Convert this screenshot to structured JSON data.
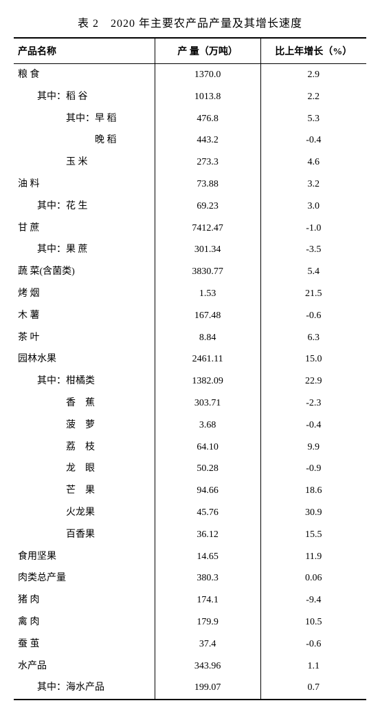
{
  "title": "表 2　2020 年主要农产品产量及其增长速度",
  "headers": {
    "name": "产品名称",
    "output": "产 量（万吨）",
    "growth": "比上年增长（%）"
  },
  "style": {
    "background_color": "#ffffff",
    "text_color": "#000000",
    "border_color": "#000000",
    "title_fontsize": 16,
    "body_fontsize": 14,
    "col_widths": [
      "40%",
      "30%",
      "30%"
    ]
  },
  "rows": [
    {
      "name": "粮 食",
      "indent": 0,
      "output": "1370.0",
      "growth": "2.9"
    },
    {
      "name": "其中：稻 谷",
      "indent": 2,
      "output": "1013.8",
      "growth": "2.2"
    },
    {
      "name": "其中：早 稻",
      "indent": 5,
      "output": "476.8",
      "growth": "5.3"
    },
    {
      "name": "晚 稻",
      "indent": 8,
      "output": "443.2",
      "growth": "-0.4"
    },
    {
      "name": "玉 米",
      "indent": 5,
      "output": "273.3",
      "growth": "4.6"
    },
    {
      "name": "油 料",
      "indent": 0,
      "output": "73.88",
      "growth": "3.2"
    },
    {
      "name": "其中：花 生",
      "indent": 2,
      "output": "69.23",
      "growth": "3.0"
    },
    {
      "name": "甘 蔗",
      "indent": 0,
      "output": "7412.47",
      "growth": "-1.0"
    },
    {
      "name": "其中：果 蔗",
      "indent": 2,
      "output": "301.34",
      "growth": "-3.5"
    },
    {
      "name": "蔬 菜(含菌类)",
      "indent": 0,
      "output": "3830.77",
      "growth": "5.4"
    },
    {
      "name": "烤 烟",
      "indent": 0,
      "output": "1.53",
      "growth": "21.5"
    },
    {
      "name": "木 薯",
      "indent": 0,
      "output": "167.48",
      "growth": "-0.6"
    },
    {
      "name": "茶 叶",
      "indent": 0,
      "output": "8.84",
      "growth": "6.3"
    },
    {
      "name": "园林水果",
      "indent": 0,
      "output": "2461.11",
      "growth": "15.0"
    },
    {
      "name": "其中：柑橘类",
      "indent": 2,
      "output": "1382.09",
      "growth": "22.9"
    },
    {
      "name": "香　蕉",
      "indent": 5,
      "output": "303.71",
      "growth": "-2.3"
    },
    {
      "name": "菠　萝",
      "indent": 5,
      "output": "3.68",
      "growth": "-0.4"
    },
    {
      "name": "荔　枝",
      "indent": 5,
      "output": "64.10",
      "growth": "9.9"
    },
    {
      "name": "龙　眼",
      "indent": 5,
      "output": "50.28",
      "growth": "-0.9"
    },
    {
      "name": "芒　果",
      "indent": 5,
      "output": "94.66",
      "growth": "18.6"
    },
    {
      "name": "火龙果",
      "indent": 5,
      "output": "45.76",
      "growth": "30.9"
    },
    {
      "name": "百香果",
      "indent": 5,
      "output": "36.12",
      "growth": "15.5"
    },
    {
      "name": "食用坚果",
      "indent": 0,
      "output": "14.65",
      "growth": "11.9"
    },
    {
      "name": "肉类总产量",
      "indent": 0,
      "output": "380.3",
      "growth": "0.06"
    },
    {
      "name": "猪 肉",
      "indent": 0,
      "output": "174.1",
      "growth": "-9.4"
    },
    {
      "name": "禽 肉",
      "indent": 0,
      "output": "179.9",
      "growth": "10.5"
    },
    {
      "name": "蚕 茧",
      "indent": 0,
      "output": "37.4",
      "growth": "-0.6"
    },
    {
      "name": "水产品",
      "indent": 0,
      "output": "343.96",
      "growth": "1.1"
    },
    {
      "name": "其中：海水产品",
      "indent": 2,
      "output": "199.07",
      "growth": "0.7"
    }
  ]
}
